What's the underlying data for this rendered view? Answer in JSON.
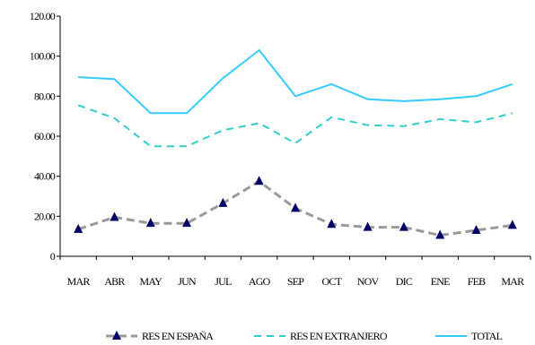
{
  "chart_data": {
    "type": "line",
    "categories": [
      "MAR",
      "ABR",
      "MAY",
      "JUN",
      "JUL",
      "AGO",
      "SEP",
      "OCT",
      "NOV",
      "DIC",
      "ENE",
      "FEB",
      "MAR"
    ],
    "ylim": [
      0,
      120
    ],
    "y_ticks": [
      "0",
      "20.00",
      "40.00",
      "60.00",
      "80.00",
      "100.00",
      "120.00"
    ],
    "grid": false,
    "legend_position": "bottom",
    "series": [
      {
        "name": "RES EN ESPAÑA",
        "color": "#999999",
        "values": [
          13.5,
          19.5,
          16.5,
          16.5,
          26.5,
          37.5,
          24,
          16,
          14.5,
          14.5,
          10.5,
          13,
          15.5
        ]
      },
      {
        "name": "RES EN EXTRANJERO",
        "color": "#33cccc",
        "values": [
          75.5,
          69,
          55,
          55,
          63,
          66.5,
          56.5,
          69.5,
          65.5,
          65,
          68.5,
          67,
          71.5
        ]
      },
      {
        "name": "TOTAL",
        "color": "#33ccff",
        "values": [
          89.5,
          88.5,
          71.5,
          71.5,
          89,
          103,
          80,
          86,
          78.5,
          77.5,
          78.5,
          80,
          86
        ]
      }
    ]
  }
}
